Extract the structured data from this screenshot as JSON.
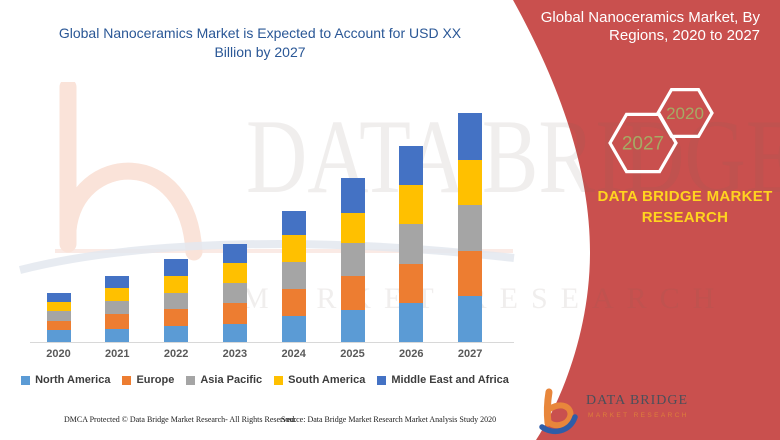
{
  "chart": {
    "title_line1": "Global Nanoceramics Market is Expected to Account for USD XX",
    "title_line2": "Billion by 2027",
    "title_color": "#2a5796"
  },
  "chart_data": {
    "type": "bar",
    "stacked": true,
    "title": "Global Nanoceramics Market is Expected to Account for USD XX Billion by 2027",
    "categories": [
      "2020",
      "2021",
      "2022",
      "2023",
      "2024",
      "2025",
      "2026",
      "2027"
    ],
    "series": [
      {
        "name": "North America",
        "color": "#5b9bd5",
        "values": [
          12,
          13,
          16,
          18,
          26,
          32,
          39,
          46
        ]
      },
      {
        "name": "Europe",
        "color": "#ed7d31",
        "values": [
          9,
          15,
          17,
          21,
          27,
          34,
          39,
          45
        ]
      },
      {
        "name": "Asia Pacific",
        "color": "#a5a5a5",
        "values": [
          10,
          13,
          16,
          20,
          27,
          33,
          40,
          46
        ]
      },
      {
        "name": "South America",
        "color": "#ffc000",
        "values": [
          9,
          13,
          17,
          20,
          27,
          30,
          39,
          45
        ]
      },
      {
        "name": "Middle East and Africa",
        "color": "#4472c4",
        "values": [
          9,
          12,
          17,
          19,
          24,
          35,
          39,
          47
        ]
      }
    ],
    "totals": [
      49,
      66,
      83,
      98,
      131,
      164,
      196,
      229
    ],
    "value_units": "relative units (no numeric axis shown; market sized as USD XX Billion)",
    "xlabel": "",
    "ylabel": "",
    "ylim": [
      0,
      240
    ],
    "grid": false,
    "legend_position": "bottom"
  },
  "right_panel": {
    "bg": "#c9504e",
    "title_line1": "Global Nanoceramics Market, By",
    "title_line2": "Regions, 2020 to 2027",
    "hexagon_front_label": "2027",
    "hexagon_back_label": "2020",
    "hexagon_text_color": "#a6aa64",
    "brand_line1": "DATA BRIDGE MARKET",
    "brand_line2": "RESEARCH",
    "brand_color": "#ffd41f"
  },
  "footer": {
    "dmca": "DMCA Protected © Data Bridge Market Research- All Rights Reserved.",
    "source": "Source: Data Bridge Market Research Market Analysis Study 2020"
  },
  "logo": {
    "name": "DATA BRIDGE",
    "sub": "MARKET RESEARCH"
  },
  "watermark": {
    "line1": "DATA BRIDGE",
    "line2": "MARKET RESEARCH"
  }
}
